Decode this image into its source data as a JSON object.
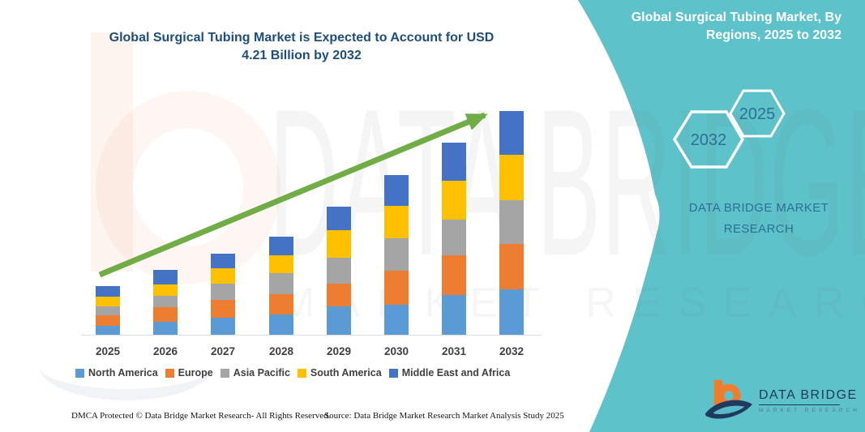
{
  "title": {
    "line1": "Global Surgical Tubing Market is Expected to Account for USD",
    "line2": "4.21 Billion by 2032"
  },
  "side_panel": {
    "heading_line1": "Global Surgical Tubing Market, By",
    "heading_line2": "Regions, 2025 to 2032",
    "hexagon_back_label": "2032",
    "hexagon_front_label": "2025",
    "brand_line1": "DATA BRIDGE MARKET",
    "brand_line2": "RESEARCH",
    "accent_teal": "#5EC2CA"
  },
  "chart_data": {
    "type": "bar",
    "stacked": true,
    "unit": "USD Billion",
    "title": "Global Surgical Tubing Market, By Regions, 2025 to 2032",
    "categories": [
      "2025",
      "2026",
      "2027",
      "2028",
      "2029",
      "2030",
      "2031",
      "2032"
    ],
    "series": [
      {
        "name": "North America",
        "color": "#5B9BD5",
        "values": [
          0.17,
          0.25,
          0.32,
          0.38,
          0.53,
          0.57,
          0.74,
          0.85
        ]
      },
      {
        "name": "Europe",
        "color": "#ED7D31",
        "values": [
          0.19,
          0.27,
          0.34,
          0.38,
          0.43,
          0.64,
          0.75,
          0.85
        ]
      },
      {
        "name": "Asia Pacific",
        "color": "#A5A5A5",
        "values": [
          0.17,
          0.21,
          0.3,
          0.4,
          0.49,
          0.61,
          0.68,
          0.83
        ]
      },
      {
        "name": "South America",
        "color": "#FFC000",
        "values": [
          0.19,
          0.21,
          0.29,
          0.33,
          0.52,
          0.6,
          0.73,
          0.86
        ]
      },
      {
        "name": "Middle East and Africa",
        "color": "#4472C4",
        "values": [
          0.19,
          0.28,
          0.28,
          0.35,
          0.44,
          0.59,
          0.71,
          0.82
        ]
      }
    ],
    "totals": [
      0.91,
      1.22,
      1.53,
      1.84,
      2.41,
      3.01,
      3.61,
      4.21
    ],
    "ylim": [
      0,
      4.5
    ],
    "grid": false,
    "legend_position": "bottom",
    "trend_arrow_color": "#70AD47",
    "projected_total_2032": "USD 4.21 Billion"
  },
  "watermark": {
    "big_text": "DATA BRIDGE",
    "small_text": "MARKET RESEARCH"
  },
  "footer": {
    "left": "DMCA Protected © Data Bridge Market Research-  All Rights Reserved.",
    "source": "Source: Data Bridge Market Research  Market Analysis Study 2025"
  },
  "logo": {
    "name": "DATA BRIDGE",
    "subtext": "MARKET RESEARCH",
    "orange": "#EF7D2E",
    "navy": "#1E3A5F"
  }
}
